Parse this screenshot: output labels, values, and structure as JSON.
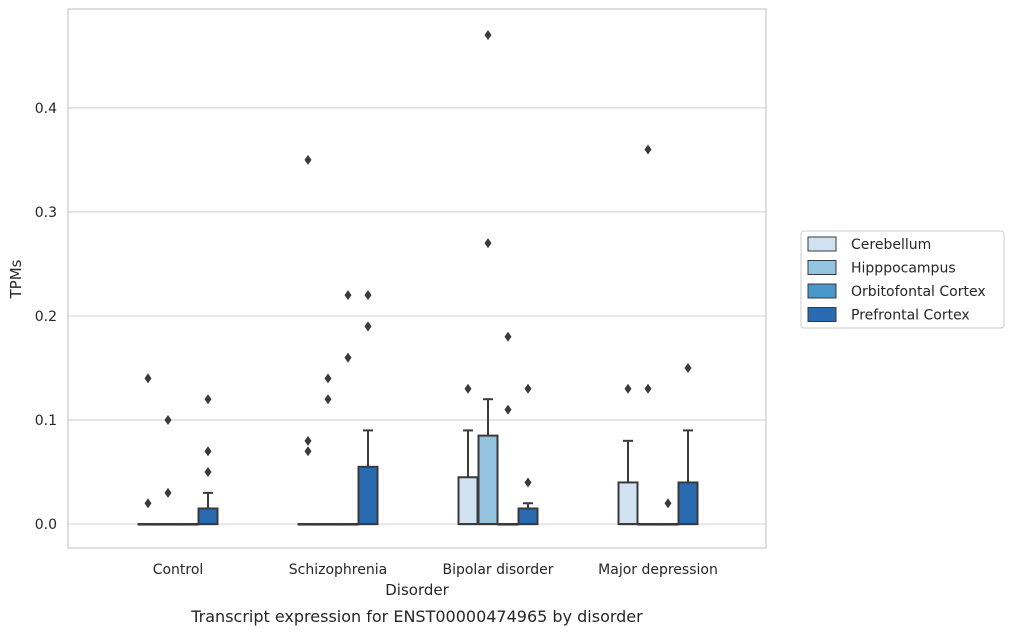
{
  "chart_data": {
    "type": "box",
    "caption": "Transcript expression for ENST00000474965 by disorder",
    "xlabel": "Disorder",
    "ylabel": "TPMs",
    "ylim": [
      -0.023,
      0.495
    ],
    "yticks": [
      0.0,
      0.1,
      0.2,
      0.3,
      0.4
    ],
    "ytick_labels": [
      "0.0",
      "0.1",
      "0.2",
      "0.3",
      "0.4"
    ],
    "grid": "horizontal",
    "legend_position": "right",
    "categories": [
      "Control",
      "Schizophrenia",
      "Bipolar disorder",
      "Major depression"
    ],
    "series": [
      {
        "name": "Cerebellum",
        "color": "#d0e1f2",
        "boxes": [
          {
            "q1": 0,
            "median": 0,
            "q3": 0,
            "whisker_low": 0,
            "whisker_high": 0,
            "outliers": [
              0.14,
              0.02
            ]
          },
          {
            "q1": 0,
            "median": 0,
            "q3": 0,
            "whisker_low": 0,
            "whisker_high": 0,
            "outliers": [
              0.35,
              0.08,
              0.07
            ]
          },
          {
            "q1": 0,
            "median": 0,
            "q3": 0.045,
            "whisker_low": 0,
            "whisker_high": 0.09,
            "outliers": [
              0.13
            ]
          },
          {
            "q1": 0,
            "median": 0,
            "q3": 0.04,
            "whisker_low": 0,
            "whisker_high": 0.08,
            "outliers": [
              0.13
            ]
          }
        ]
      },
      {
        "name": "Hipppocampus",
        "color": "#94c4df",
        "boxes": [
          {
            "q1": 0,
            "median": 0,
            "q3": 0,
            "whisker_low": 0,
            "whisker_high": 0,
            "outliers": [
              0.1,
              0.03
            ]
          },
          {
            "q1": 0,
            "median": 0,
            "q3": 0,
            "whisker_low": 0,
            "whisker_high": 0,
            "outliers": [
              0.14,
              0.12
            ]
          },
          {
            "q1": 0,
            "median": 0,
            "q3": 0.085,
            "whisker_low": 0,
            "whisker_high": 0.12,
            "outliers": [
              0.47,
              0.27
            ]
          },
          {
            "q1": 0,
            "median": 0,
            "q3": 0,
            "whisker_low": 0,
            "whisker_high": 0,
            "outliers": [
              0.36,
              0.13
            ]
          }
        ]
      },
      {
        "name": "Orbitofontal Cortex",
        "color": "#4a98c9",
        "boxes": [
          {
            "q1": 0,
            "median": 0,
            "q3": 0,
            "whisker_low": 0,
            "whisker_high": 0,
            "outliers": []
          },
          {
            "q1": 0,
            "median": 0,
            "q3": 0,
            "whisker_low": 0,
            "whisker_high": 0,
            "outliers": [
              0.22,
              0.16
            ]
          },
          {
            "q1": 0,
            "median": 0,
            "q3": 0,
            "whisker_low": 0,
            "whisker_high": 0,
            "outliers": [
              0.18,
              0.11
            ]
          },
          {
            "q1": 0,
            "median": 0,
            "q3": 0,
            "whisker_low": 0,
            "whisker_high": 0,
            "outliers": [
              0.02
            ]
          }
        ]
      },
      {
        "name": "Prefrontal Cortex",
        "color": "#2a6ab0",
        "boxes": [
          {
            "q1": 0,
            "median": 0,
            "q3": 0.015,
            "whisker_low": 0,
            "whisker_high": 0.03,
            "outliers": [
              0.12,
              0.07,
              0.05
            ]
          },
          {
            "q1": 0,
            "median": 0,
            "q3": 0.055,
            "whisker_low": 0,
            "whisker_high": 0.09,
            "outliers": [
              0.22,
              0.19
            ]
          },
          {
            "q1": 0,
            "median": 0,
            "q3": 0.015,
            "whisker_low": 0,
            "whisker_high": 0.02,
            "outliers": [
              0.13,
              0.04
            ]
          },
          {
            "q1": 0,
            "median": 0,
            "q3": 0.04,
            "whisker_low": 0,
            "whisker_high": 0.09,
            "outliers": [
              0.15
            ]
          }
        ]
      }
    ]
  }
}
